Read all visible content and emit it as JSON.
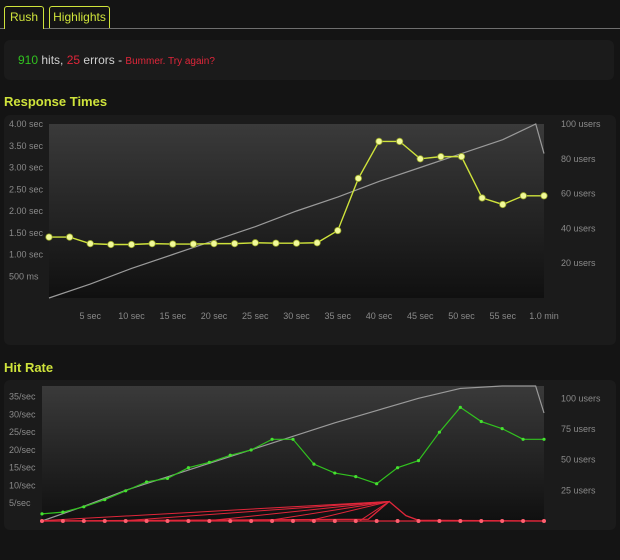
{
  "tabs": [
    {
      "label": "Rush"
    },
    {
      "label": "Highlights"
    }
  ],
  "summary": {
    "hits": "910",
    "hits_label": " hits, ",
    "errors": "25",
    "errors_label": " errors - ",
    "message": "Bummer. Try again?"
  },
  "colors": {
    "accent": "#cfe33b",
    "hits": "#31c21f",
    "errors": "#e0263a",
    "users_line": "#9a9a9a"
  },
  "response_chart": {
    "title": "Response Times",
    "y_ticks": [
      "4.00 sec",
      "3.50 sec",
      "3.00 sec",
      "2.50 sec",
      "2.00 sec",
      "1.50 sec",
      "1.00 sec",
      "500 ms"
    ],
    "y2_ticks": [
      "100 users",
      "80 users",
      "60 users",
      "40 users",
      "20 users"
    ],
    "x_ticks": [
      "5 sec",
      "10 sec",
      "15 sec",
      "20 sec",
      "25 sec",
      "30 sec",
      "35 sec",
      "40 sec",
      "45 sec",
      "50 sec",
      "55 sec",
      "1.0 min"
    ]
  },
  "hit_chart": {
    "title": "Hit Rate",
    "y_ticks": [
      "35/sec",
      "30/sec",
      "25/sec",
      "20/sec",
      "15/sec",
      "10/sec",
      "5/sec"
    ],
    "y2_ticks": [
      "100 users",
      "75 users",
      "50 users",
      "25 users"
    ]
  },
  "chart_data": [
    {
      "type": "line",
      "title": "Response Times",
      "xlabel": "",
      "ylabel": "",
      "xlim": [
        0,
        60
      ],
      "ylim": [
        0,
        4
      ],
      "y2lim": [
        0,
        100
      ],
      "series": [
        {
          "axis": "left",
          "x": [
            0,
            2.5,
            5,
            7.5,
            10,
            12.5,
            15,
            17.5,
            20,
            22.5,
            25,
            27.5,
            30,
            32.5,
            35,
            37.5,
            40,
            42.5,
            45,
            47.5,
            50,
            52.5,
            55,
            57.5,
            60
          ],
          "y": [
            1.4,
            1.4,
            1.25,
            1.23,
            1.23,
            1.25,
            1.24,
            1.24,
            1.25,
            1.25,
            1.27,
            1.26,
            1.26,
            1.27,
            1.55,
            2.75,
            3.6,
            3.6,
            3.2,
            3.25,
            3.25,
            2.3,
            2.15,
            2.35,
            2.35
          ]
        },
        {
          "axis": "right",
          "x": [
            0,
            5,
            10,
            15,
            20,
            25,
            30,
            35,
            40,
            45,
            50,
            55,
            59,
            60
          ],
          "y": [
            0,
            8,
            17,
            25,
            33,
            41,
            50,
            58,
            67,
            75,
            83,
            91,
            100,
            83
          ]
        }
      ]
    },
    {
      "type": "line",
      "title": "Hit Rate",
      "xlabel": "",
      "ylabel": "",
      "xlim": [
        0,
        60
      ],
      "ylim": [
        0,
        38
      ],
      "y2lim": [
        0,
        110
      ],
      "series": [
        {
          "axis": "left",
          "x": [
            0,
            2.5,
            5,
            7.5,
            10,
            12.5,
            15,
            17.5,
            20,
            22.5,
            25,
            27.5,
            30,
            32.5,
            35,
            37.5,
            40,
            42.5,
            45,
            47.5,
            50,
            52.5,
            55,
            57.5,
            60
          ],
          "y": [
            2,
            2.5,
            4,
            6,
            8.5,
            11,
            12,
            15,
            16.5,
            18.5,
            20,
            23,
            23,
            16,
            13.5,
            12.5,
            10.5,
            15,
            17,
            25,
            32,
            28,
            26,
            23,
            23
          ]
        },
        {
          "axis": "left",
          "x": [
            0,
            2.5,
            5,
            7.5,
            10,
            12.5,
            15,
            17.5,
            20,
            22.5,
            25,
            27.5,
            30,
            32.5,
            35,
            37.5,
            40,
            42.5,
            45,
            47.5,
            50,
            52.5,
            55,
            57.5,
            60
          ],
          "y": [
            0,
            0,
            0,
            0,
            0,
            0,
            0,
            0,
            0,
            0,
            0,
            0,
            0,
            0,
            0,
            0,
            0,
            0,
            0,
            0,
            0,
            0,
            0,
            0,
            0
          ]
        },
        {
          "axis": "right",
          "x": [
            0,
            5,
            10,
            15,
            20,
            25,
            30,
            35,
            40,
            45,
            50,
            55,
            59,
            60
          ],
          "y": [
            0,
            12,
            25,
            36,
            47,
            58,
            69,
            80,
            90,
            100,
            108,
            110,
            110,
            88
          ]
        }
      ]
    }
  ]
}
